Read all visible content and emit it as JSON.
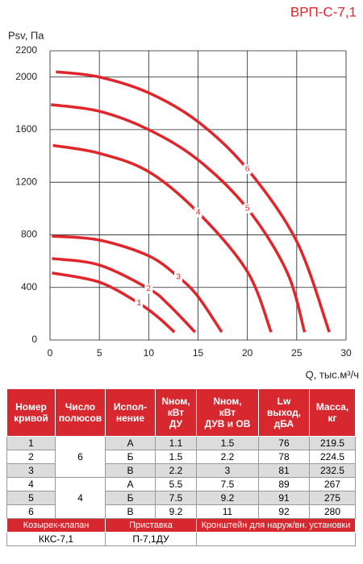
{
  "chart_data": {
    "type": "line",
    "title": "ВРП-С-7,1",
    "y_label": "Psv, Па",
    "x_label": "Q, тыс.м³/ч",
    "xlim": [
      0,
      30
    ],
    "xticks": [
      0,
      5,
      10,
      15,
      20,
      25,
      30
    ],
    "ylim": [
      0,
      2200
    ],
    "yticks": [
      0,
      400,
      800,
      1200,
      1600,
      2000,
      2200
    ],
    "grid": true,
    "color": "#e0252b",
    "series": [
      {
        "name": "1",
        "x": [
          0.2,
          5,
          9,
          11,
          12.6
        ],
        "values": [
          510,
          440,
          280,
          170,
          60
        ]
      },
      {
        "name": "2",
        "x": [
          0.2,
          5,
          10,
          12,
          14.7
        ],
        "values": [
          620,
          570,
          390,
          270,
          60
        ]
      },
      {
        "name": "3",
        "x": [
          0.2,
          5,
          10,
          13,
          15,
          17.4
        ],
        "values": [
          790,
          760,
          640,
          480,
          330,
          60
        ]
      },
      {
        "name": "4",
        "x": [
          0.3,
          5,
          10,
          15,
          20,
          22.4
        ],
        "values": [
          1480,
          1420,
          1280,
          970,
          520,
          60
        ]
      },
      {
        "name": "5",
        "x": [
          0.1,
          5,
          10,
          15,
          20,
          24,
          25.8
        ],
        "values": [
          1790,
          1740,
          1600,
          1370,
          1000,
          520,
          60
        ]
      },
      {
        "name": "6",
        "x": [
          0.6,
          5,
          10,
          15,
          20,
          25,
          28.3
        ],
        "values": [
          2040,
          2000,
          1880,
          1660,
          1300,
          750,
          60
        ]
      }
    ]
  },
  "table": {
    "header": [
      "Номер\nкривой",
      "Число\nполюсов",
      "Испол-\nнение",
      "Nном,\nкВт\nДУ",
      "Nном,\nкВт\nДУВ и ОВ",
      "Lw\nвыход,\nдБА",
      "Масса,\nкг"
    ],
    "poles": [
      6,
      4
    ],
    "rows": [
      [
        1,
        "А",
        1.1,
        1.5,
        76,
        219.5
      ],
      [
        2,
        "Б",
        1.5,
        2.2,
        78,
        224.5
      ],
      [
        3,
        "В",
        2.2,
        3,
        81,
        232.5
      ],
      [
        4,
        "А",
        5.5,
        7.5,
        89,
        267
      ],
      [
        5,
        "Б",
        7.5,
        9.2,
        91,
        275
      ],
      [
        6,
        "В",
        9.2,
        11,
        92,
        280
      ]
    ],
    "accessories_header": [
      "Козырек-клапан",
      "Приставка",
      "Кронштейн для наруж/вн. установки"
    ],
    "accessories": [
      "ККС-7,1",
      "П-7,1ДУ"
    ]
  }
}
